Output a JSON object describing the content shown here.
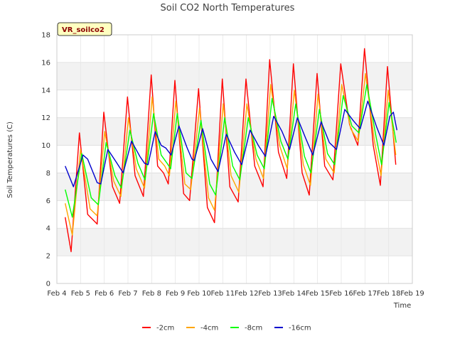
{
  "chart_data": {
    "type": "line",
    "title": "Soil CO2 North Temperatures",
    "xlabel": "Time",
    "ylabel": "Soil Temperatures (C)",
    "badge": "VR_soilco2",
    "ylim": [
      0,
      18
    ],
    "yticks": [
      0,
      2,
      4,
      6,
      8,
      10,
      12,
      14,
      16,
      18
    ],
    "xlim": [
      4,
      19
    ],
    "xticks": [
      {
        "value": 4,
        "label": "Feb 4"
      },
      {
        "value": 5,
        "label": "Feb 5"
      },
      {
        "value": 6,
        "label": "Feb 6"
      },
      {
        "value": 7,
        "label": "Feb 7"
      },
      {
        "value": 8,
        "label": "Feb 8"
      },
      {
        "value": 9,
        "label": "Feb 9"
      },
      {
        "value": 10,
        "label": "Feb 10"
      },
      {
        "value": 11,
        "label": "Feb 11"
      },
      {
        "value": 12,
        "label": "Feb 12"
      },
      {
        "value": 13,
        "label": "Feb 13"
      },
      {
        "value": 14,
        "label": "Feb 14"
      },
      {
        "value": 15,
        "label": "Feb 15"
      },
      {
        "value": 16,
        "label": "Feb 16"
      },
      {
        "value": 17,
        "label": "Feb 17"
      },
      {
        "value": 18,
        "label": "Feb 18"
      },
      {
        "value": 19,
        "label": "Feb 19"
      }
    ],
    "grid": true,
    "legend_position": "bottom",
    "series": [
      {
        "name": "-2cm",
        "color": "#ff0000",
        "points": [
          [
            4.35,
            4.8
          ],
          [
            4.6,
            2.3
          ],
          [
            4.95,
            10.9
          ],
          [
            5.3,
            5.0
          ],
          [
            5.7,
            4.3
          ],
          [
            5.98,
            12.4
          ],
          [
            6.35,
            7.0
          ],
          [
            6.65,
            5.8
          ],
          [
            6.98,
            13.5
          ],
          [
            7.3,
            7.8
          ],
          [
            7.65,
            6.3
          ],
          [
            7.98,
            15.1
          ],
          [
            8.25,
            8.5
          ],
          [
            8.5,
            8.0
          ],
          [
            8.7,
            7.2
          ],
          [
            8.98,
            14.7
          ],
          [
            9.35,
            6.5
          ],
          [
            9.6,
            6.0
          ],
          [
            9.98,
            14.1
          ],
          [
            10.35,
            5.5
          ],
          [
            10.65,
            4.4
          ],
          [
            10.98,
            14.8
          ],
          [
            11.3,
            7.0
          ],
          [
            11.65,
            5.9
          ],
          [
            11.98,
            14.8
          ],
          [
            12.35,
            8.5
          ],
          [
            12.7,
            7.0
          ],
          [
            12.98,
            16.2
          ],
          [
            13.35,
            9.5
          ],
          [
            13.7,
            7.6
          ],
          [
            13.98,
            15.9
          ],
          [
            14.35,
            8.0
          ],
          [
            14.65,
            6.4
          ],
          [
            14.98,
            15.2
          ],
          [
            15.3,
            8.5
          ],
          [
            15.65,
            7.5
          ],
          [
            15.98,
            15.9
          ],
          [
            16.35,
            11.5
          ],
          [
            16.7,
            10.0
          ],
          [
            16.98,
            17.0
          ],
          [
            17.35,
            10.0
          ],
          [
            17.65,
            7.1
          ],
          [
            17.95,
            15.7
          ],
          [
            18.3,
            8.6
          ]
        ]
      },
      {
        "name": "-4cm",
        "color": "#ffa500",
        "points": [
          [
            4.35,
            5.8
          ],
          [
            4.65,
            3.5
          ],
          [
            5.0,
            9.7
          ],
          [
            5.4,
            5.4
          ],
          [
            5.7,
            4.9
          ],
          [
            6.02,
            11.0
          ],
          [
            6.4,
            7.4
          ],
          [
            6.7,
            6.3
          ],
          [
            7.02,
            12.0
          ],
          [
            7.35,
            8.3
          ],
          [
            7.7,
            6.9
          ],
          [
            8.02,
            13.5
          ],
          [
            8.3,
            9.0
          ],
          [
            8.55,
            8.5
          ],
          [
            8.75,
            7.8
          ],
          [
            9.02,
            13.2
          ],
          [
            9.4,
            7.2
          ],
          [
            9.65,
            6.8
          ],
          [
            10.02,
            12.7
          ],
          [
            10.4,
            6.2
          ],
          [
            10.65,
            5.3
          ],
          [
            11.02,
            13.0
          ],
          [
            11.35,
            7.8
          ],
          [
            11.68,
            6.6
          ],
          [
            12.02,
            13.0
          ],
          [
            12.4,
            9.0
          ],
          [
            12.72,
            7.6
          ],
          [
            13.02,
            14.4
          ],
          [
            13.4,
            10.0
          ],
          [
            13.72,
            8.3
          ],
          [
            14.02,
            14.0
          ],
          [
            14.4,
            8.6
          ],
          [
            14.7,
            7.1
          ],
          [
            15.02,
            13.7
          ],
          [
            15.35,
            9.0
          ],
          [
            15.7,
            8.0
          ],
          [
            16.02,
            14.4
          ],
          [
            16.4,
            11.2
          ],
          [
            16.72,
            10.3
          ],
          [
            17.02,
            15.2
          ],
          [
            17.4,
            10.3
          ],
          [
            17.68,
            7.8
          ],
          [
            17.98,
            14.0
          ],
          [
            18.3,
            9.3
          ]
        ]
      },
      {
        "name": "-8cm",
        "color": "#00ff00",
        "points": [
          [
            4.35,
            6.8
          ],
          [
            4.65,
            4.8
          ],
          [
            5.05,
            9.4
          ],
          [
            5.45,
            6.2
          ],
          [
            5.75,
            5.7
          ],
          [
            6.08,
            10.2
          ],
          [
            6.45,
            7.8
          ],
          [
            6.72,
            6.9
          ],
          [
            7.08,
            11.1
          ],
          [
            7.42,
            8.7
          ],
          [
            7.72,
            7.5
          ],
          [
            8.08,
            12.3
          ],
          [
            8.4,
            9.3
          ],
          [
            8.65,
            8.7
          ],
          [
            8.8,
            8.3
          ],
          [
            9.08,
            12.3
          ],
          [
            9.45,
            8.0
          ],
          [
            9.7,
            7.6
          ],
          [
            10.08,
            11.8
          ],
          [
            10.45,
            7.2
          ],
          [
            10.7,
            6.4
          ],
          [
            11.08,
            12.0
          ],
          [
            11.42,
            8.5
          ],
          [
            11.72,
            7.5
          ],
          [
            12.08,
            12.0
          ],
          [
            12.45,
            9.3
          ],
          [
            12.75,
            8.3
          ],
          [
            13.08,
            13.4
          ],
          [
            13.45,
            10.3
          ],
          [
            13.75,
            9.0
          ],
          [
            14.08,
            13.0
          ],
          [
            14.45,
            9.2
          ],
          [
            14.72,
            8.0
          ],
          [
            15.08,
            12.6
          ],
          [
            15.42,
            9.4
          ],
          [
            15.72,
            8.6
          ],
          [
            16.08,
            13.6
          ],
          [
            16.45,
            11.4
          ],
          [
            16.75,
            10.9
          ],
          [
            17.08,
            14.4
          ],
          [
            17.45,
            10.8
          ],
          [
            17.7,
            8.6
          ],
          [
            18.02,
            13.1
          ],
          [
            18.32,
            10.2
          ]
        ]
      },
      {
        "name": "-16cm",
        "color": "#0000cd",
        "points": [
          [
            4.35,
            8.5
          ],
          [
            4.7,
            7.0
          ],
          [
            5.1,
            9.3
          ],
          [
            5.3,
            9.0
          ],
          [
            5.7,
            7.3
          ],
          [
            5.85,
            7.2
          ],
          [
            6.15,
            9.7
          ],
          [
            6.5,
            8.8
          ],
          [
            6.8,
            8.0
          ],
          [
            7.15,
            10.3
          ],
          [
            7.5,
            9.2
          ],
          [
            7.7,
            8.7
          ],
          [
            7.85,
            8.6
          ],
          [
            8.15,
            11.0
          ],
          [
            8.4,
            10.0
          ],
          [
            8.6,
            9.8
          ],
          [
            8.82,
            9.3
          ],
          [
            9.15,
            11.4
          ],
          [
            9.5,
            9.8
          ],
          [
            9.7,
            9.0
          ],
          [
            9.8,
            8.9
          ],
          [
            10.15,
            11.2
          ],
          [
            10.5,
            9.0
          ],
          [
            10.8,
            8.1
          ],
          [
            11.15,
            10.8
          ],
          [
            11.5,
            9.5
          ],
          [
            11.8,
            8.6
          ],
          [
            12.15,
            11.1
          ],
          [
            12.5,
            10.0
          ],
          [
            12.8,
            9.2
          ],
          [
            13.15,
            12.1
          ],
          [
            13.5,
            11.0
          ],
          [
            13.82,
            9.7
          ],
          [
            14.15,
            12.0
          ],
          [
            14.5,
            10.5
          ],
          [
            14.8,
            9.3
          ],
          [
            15.15,
            11.7
          ],
          [
            15.5,
            10.2
          ],
          [
            15.8,
            9.7
          ],
          [
            16.15,
            12.6
          ],
          [
            16.5,
            11.8
          ],
          [
            16.8,
            11.2
          ],
          [
            17.12,
            13.2
          ],
          [
            17.5,
            11.3
          ],
          [
            17.8,
            10.0
          ],
          [
            18.05,
            12.1
          ],
          [
            18.2,
            12.4
          ],
          [
            18.35,
            11.1
          ]
        ]
      }
    ]
  }
}
